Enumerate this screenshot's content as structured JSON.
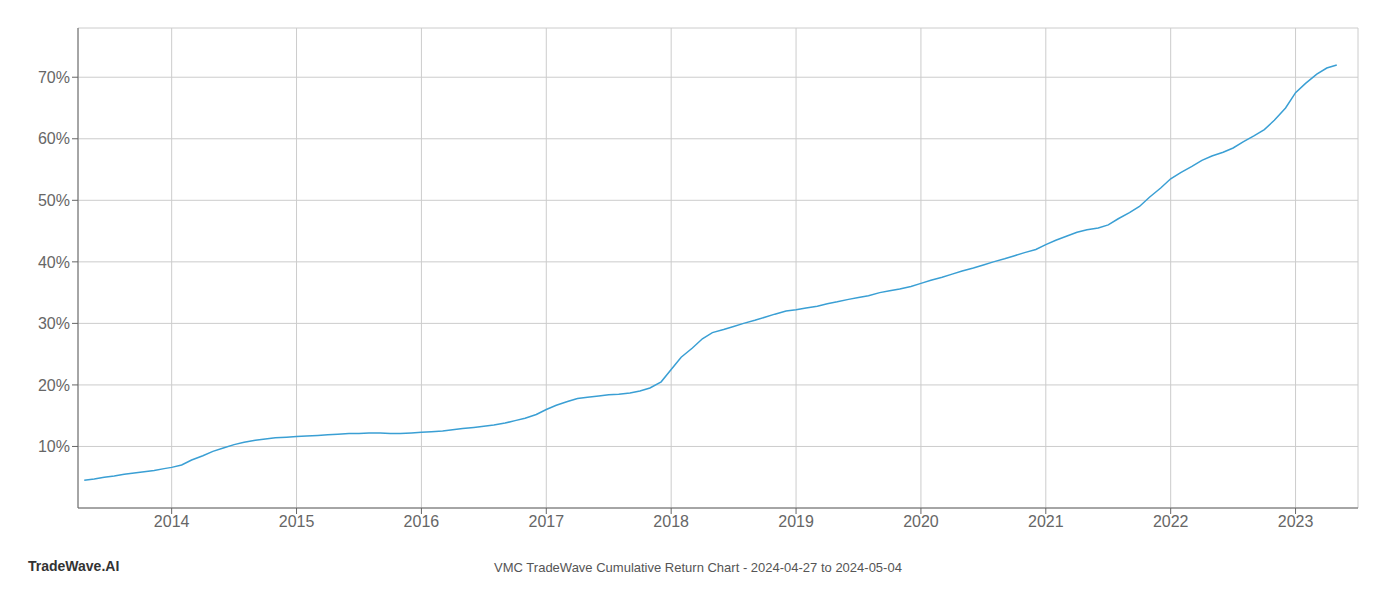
{
  "chart_data": {
    "type": "line",
    "title": "VMC TradeWave Cumulative Return Chart - 2024-04-27 to 2024-05-04",
    "annotations": [
      "TradeWave.AI"
    ],
    "color": "#3a9fd4",
    "grid": true,
    "x": [
      2013.3,
      2013.38,
      2013.46,
      2013.54,
      2013.62,
      2013.7,
      2013.78,
      2013.86,
      2013.94,
      2014.0,
      2014.08,
      2014.16,
      2014.25,
      2014.33,
      2014.42,
      2014.5,
      2014.58,
      2014.67,
      2014.75,
      2014.83,
      2014.92,
      2015.0,
      2015.08,
      2015.17,
      2015.25,
      2015.33,
      2015.42,
      2015.5,
      2015.58,
      2015.67,
      2015.75,
      2015.83,
      2015.92,
      2016.0,
      2016.08,
      2016.17,
      2016.25,
      2016.33,
      2016.42,
      2016.5,
      2016.58,
      2016.67,
      2016.75,
      2016.83,
      2016.92,
      2017.0,
      2017.08,
      2017.17,
      2017.25,
      2017.33,
      2017.42,
      2017.5,
      2017.58,
      2017.67,
      2017.75,
      2017.83,
      2017.92,
      2018.0,
      2018.08,
      2018.17,
      2018.25,
      2018.33,
      2018.42,
      2018.5,
      2018.58,
      2018.67,
      2018.75,
      2018.83,
      2018.92,
      2019.0,
      2019.08,
      2019.17,
      2019.25,
      2019.33,
      2019.42,
      2019.5,
      2019.58,
      2019.67,
      2019.75,
      2019.83,
      2019.92,
      2020.0,
      2020.08,
      2020.17,
      2020.25,
      2020.33,
      2020.42,
      2020.5,
      2020.58,
      2020.67,
      2020.75,
      2020.83,
      2020.92,
      2021.0,
      2021.08,
      2021.17,
      2021.25,
      2021.33,
      2021.42,
      2021.5,
      2021.58,
      2021.67,
      2021.75,
      2021.83,
      2021.92,
      2022.0,
      2022.08,
      2022.17,
      2022.25,
      2022.33,
      2022.42,
      2022.5,
      2022.58,
      2022.67,
      2022.75,
      2022.83,
      2022.92,
      2023.0,
      2023.08,
      2023.17,
      2023.25,
      2023.33
    ],
    "values": [
      4.5,
      4.7,
      5.0,
      5.2,
      5.5,
      5.7,
      5.9,
      6.1,
      6.4,
      6.6,
      7.0,
      7.8,
      8.5,
      9.2,
      9.8,
      10.3,
      10.7,
      11.0,
      11.2,
      11.4,
      11.5,
      11.6,
      11.7,
      11.8,
      11.9,
      12.0,
      12.1,
      12.1,
      12.2,
      12.2,
      12.1,
      12.1,
      12.2,
      12.3,
      12.4,
      12.5,
      12.7,
      12.9,
      13.1,
      13.3,
      13.5,
      13.8,
      14.2,
      14.6,
      15.2,
      16.0,
      16.7,
      17.3,
      17.8,
      18.0,
      18.2,
      18.4,
      18.5,
      18.7,
      19.0,
      19.5,
      20.5,
      22.5,
      24.5,
      26.0,
      27.5,
      28.5,
      29.0,
      29.5,
      30.0,
      30.5,
      31.0,
      31.5,
      32.0,
      32.2,
      32.5,
      32.8,
      33.2,
      33.5,
      33.9,
      34.2,
      34.5,
      35.0,
      35.3,
      35.6,
      36.0,
      36.5,
      37.0,
      37.5,
      38.0,
      38.5,
      39.0,
      39.5,
      40.0,
      40.5,
      41.0,
      41.5,
      42.0,
      42.8,
      43.5,
      44.2,
      44.8,
      45.2,
      45.5,
      46.0,
      47.0,
      48.0,
      49.0,
      50.5,
      52.0,
      53.5,
      54.5,
      55.5,
      56.5,
      57.2,
      57.8,
      58.5,
      59.5,
      60.5,
      61.5,
      63.0,
      65.0,
      67.5,
      69.0,
      70.5,
      71.5,
      72.0
    ],
    "xlim": [
      2013.25,
      2023.5
    ],
    "xticks": [
      2014,
      2015,
      2016,
      2017,
      2018,
      2019,
      2020,
      2021,
      2022,
      2023
    ],
    "ylim": [
      0,
      78
    ],
    "yticks": [
      {
        "value": 10,
        "label": "10%"
      },
      {
        "value": 20,
        "label": "20%"
      },
      {
        "value": 30,
        "label": "30%"
      },
      {
        "value": 40,
        "label": "40%"
      },
      {
        "value": 50,
        "label": "50%"
      },
      {
        "value": 60,
        "label": "60%"
      },
      {
        "value": 70,
        "label": "70%"
      }
    ]
  }
}
